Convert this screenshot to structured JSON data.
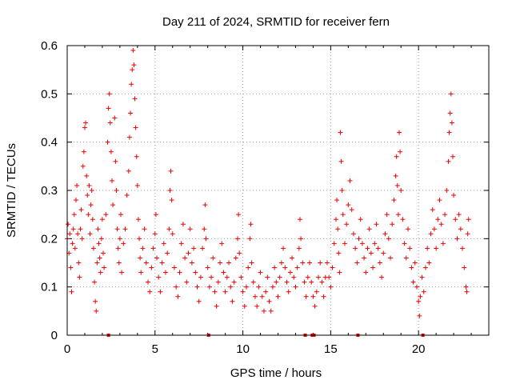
{
  "chart_data": {
    "type": "scatter",
    "title": "Day 211 of 2024, SRMTID for receiver fern",
    "xlabel": "GPS time / hours",
    "ylabel": "SRMTID / TECUs",
    "xlim": [
      0,
      24
    ],
    "ylim": [
      0,
      0.6
    ],
    "grid": true,
    "marker": "+",
    "series_color": "#ee0000",
    "x_ticks": [
      0,
      5,
      10,
      15,
      20
    ],
    "x_tick_labels": [
      "0",
      "5",
      "10",
      "15",
      "20"
    ],
    "y_ticks": [
      0,
      0.1,
      0.2,
      0.3,
      0.4,
      0.5,
      0.6
    ],
    "y_tick_labels": [
      "0",
      "0.1",
      "0.2",
      "0.3",
      "0.4",
      "0.5",
      "0.6"
    ],
    "series": [
      {
        "name": "SRMTID",
        "points": [
          [
            0.0,
            0.2
          ],
          [
            0.05,
            0.23
          ],
          [
            0.1,
            0.17
          ],
          [
            0.15,
            0.21
          ],
          [
            0.2,
            0.14
          ],
          [
            0.25,
            0.09
          ],
          [
            0.3,
            0.19
          ],
          [
            0.35,
            0.22
          ],
          [
            0.4,
            0.25
          ],
          [
            0.45,
            0.18
          ],
          [
            0.5,
            0.28
          ],
          [
            0.55,
            0.31
          ],
          [
            0.6,
            0.21
          ],
          [
            0.65,
            0.15
          ],
          [
            0.7,
            0.12
          ],
          [
            0.75,
            0.22
          ],
          [
            0.8,
            0.26
          ],
          [
            0.85,
            0.2
          ],
          [
            0.9,
            0.35
          ],
          [
            0.95,
            0.38
          ],
          [
            1.0,
            0.43
          ],
          [
            1.05,
            0.44
          ],
          [
            1.1,
            0.33
          ],
          [
            1.15,
            0.29
          ],
          [
            1.2,
            0.25
          ],
          [
            1.25,
            0.31
          ],
          [
            1.3,
            0.21
          ],
          [
            1.35,
            0.27
          ],
          [
            1.4,
            0.3
          ],
          [
            1.45,
            0.24
          ],
          [
            1.5,
            0.18
          ],
          [
            1.55,
            0.11
          ],
          [
            1.6,
            0.07
          ],
          [
            1.65,
            0.05
          ],
          [
            1.7,
            0.15
          ],
          [
            1.75,
            0.22
          ],
          [
            1.8,
            0.19
          ],
          [
            1.85,
            0.16
          ],
          [
            1.9,
            0.13
          ],
          [
            1.95,
            0.2
          ],
          [
            2.0,
            0.24
          ],
          [
            2.05,
            0.17
          ],
          [
            2.1,
            0.14
          ],
          [
            2.2,
            0.25
          ],
          [
            2.3,
            0.4
          ],
          [
            2.35,
            0.47
          ],
          [
            2.4,
            0.5
          ],
          [
            2.45,
            0.44
          ],
          [
            2.5,
            0.38
          ],
          [
            2.55,
            0.32
          ],
          [
            2.6,
            0.27
          ],
          [
            2.7,
            0.45
          ],
          [
            2.75,
            0.36
          ],
          [
            2.8,
            0.3
          ],
          [
            2.85,
            0.22
          ],
          [
            2.9,
            0.18
          ],
          [
            2.95,
            0.15
          ],
          [
            3.0,
            0.2
          ],
          [
            3.05,
            0.25
          ],
          [
            3.1,
            0.13
          ],
          [
            3.2,
            0.19
          ],
          [
            3.3,
            0.22
          ],
          [
            3.4,
            0.29
          ],
          [
            3.5,
            0.34
          ],
          [
            3.55,
            0.41
          ],
          [
            3.6,
            0.46
          ],
          [
            3.65,
            0.52
          ],
          [
            3.7,
            0.55
          ],
          [
            3.75,
            0.59
          ],
          [
            3.8,
            0.56
          ],
          [
            3.85,
            0.49
          ],
          [
            3.9,
            0.43
          ],
          [
            3.95,
            0.37
          ],
          [
            4.0,
            0.31
          ],
          [
            4.05,
            0.24
          ],
          [
            4.1,
            0.2
          ],
          [
            4.15,
            0.16
          ],
          [
            4.2,
            0.13
          ],
          [
            4.3,
            0.18
          ],
          [
            4.4,
            0.22
          ],
          [
            4.5,
            0.15
          ],
          [
            4.6,
            0.11
          ],
          [
            4.7,
            0.09
          ],
          [
            4.8,
            0.14
          ],
          [
            4.9,
            0.18
          ],
          [
            5.0,
            0.21
          ],
          [
            5.05,
            0.25
          ],
          [
            5.1,
            0.16
          ],
          [
            5.2,
            0.12
          ],
          [
            5.3,
            0.09
          ],
          [
            5.4,
            0.15
          ],
          [
            5.5,
            0.19
          ],
          [
            5.6,
            0.13
          ],
          [
            5.7,
            0.17
          ],
          [
            5.8,
            0.22
          ],
          [
            5.85,
            0.3
          ],
          [
            5.9,
            0.34
          ],
          [
            5.95,
            0.28
          ],
          [
            6.0,
            0.21
          ],
          [
            6.1,
            0.14
          ],
          [
            6.2,
            0.1
          ],
          [
            6.3,
            0.08
          ],
          [
            6.4,
            0.13
          ],
          [
            6.5,
            0.19
          ],
          [
            6.6,
            0.23
          ],
          [
            6.7,
            0.16
          ],
          [
            6.8,
            0.11
          ],
          [
            6.9,
            0.17
          ],
          [
            7.0,
            0.22
          ],
          [
            7.1,
            0.15
          ],
          [
            7.2,
            0.18
          ],
          [
            7.3,
            0.13
          ],
          [
            7.4,
            0.1
          ],
          [
            7.5,
            0.07
          ],
          [
            7.6,
            0.12
          ],
          [
            7.7,
            0.18
          ],
          [
            7.8,
            0.22
          ],
          [
            7.85,
            0.27
          ],
          [
            7.9,
            0.2
          ],
          [
            8.0,
            0.14
          ],
          [
            8.1,
            0.1
          ],
          [
            8.2,
            0.12
          ],
          [
            8.3,
            0.16
          ],
          [
            8.4,
            0.09
          ],
          [
            8.5,
            0.06
          ],
          [
            8.6,
            0.11
          ],
          [
            8.7,
            0.15
          ],
          [
            8.8,
            0.19
          ],
          [
            8.9,
            0.13
          ],
          [
            9.0,
            0.09
          ],
          [
            9.1,
            0.12
          ],
          [
            9.2,
            0.15
          ],
          [
            9.3,
            0.1
          ],
          [
            9.4,
            0.07
          ],
          [
            9.5,
            0.11
          ],
          [
            9.6,
            0.16
          ],
          [
            9.7,
            0.2
          ],
          [
            9.75,
            0.25
          ],
          [
            9.8,
            0.17
          ],
          [
            9.9,
            0.12
          ],
          [
            10.0,
            0.09
          ],
          [
            10.1,
            0.06
          ],
          [
            10.2,
            0.1
          ],
          [
            10.3,
            0.14
          ],
          [
            10.4,
            0.2
          ],
          [
            10.45,
            0.23
          ],
          [
            10.5,
            0.15
          ],
          [
            10.6,
            0.11
          ],
          [
            10.7,
            0.08
          ],
          [
            10.8,
            0.06
          ],
          [
            10.9,
            0.1
          ],
          [
            11.0,
            0.13
          ],
          [
            11.1,
            0.08
          ],
          [
            11.2,
            0.05
          ],
          [
            11.3,
            0.09
          ],
          [
            11.4,
            0.12
          ],
          [
            11.5,
            0.07
          ],
          [
            11.6,
            0.05
          ],
          [
            11.7,
            0.1
          ],
          [
            11.8,
            0.14
          ],
          [
            11.9,
            0.11
          ],
          [
            12.0,
            0.08
          ],
          [
            12.1,
            0.12
          ],
          [
            12.2,
            0.15
          ],
          [
            12.3,
            0.18
          ],
          [
            12.4,
            0.14
          ],
          [
            12.5,
            0.11
          ],
          [
            12.6,
            0.09
          ],
          [
            12.7,
            0.13
          ],
          [
            12.8,
            0.16
          ],
          [
            12.9,
            0.12
          ],
          [
            13.0,
            0.1
          ],
          [
            13.1,
            0.14
          ],
          [
            13.2,
            0.18
          ],
          [
            13.25,
            0.24
          ],
          [
            13.3,
            0.2
          ],
          [
            13.4,
            0.15
          ],
          [
            13.5,
            0.11
          ],
          [
            13.6,
            0.08
          ],
          [
            13.7,
            0.12
          ],
          [
            13.8,
            0.15
          ],
          [
            13.9,
            0.11
          ],
          [
            14.0,
            0.08
          ],
          [
            14.1,
            0.06
          ],
          [
            14.2,
            0.09
          ],
          [
            14.3,
            0.12
          ],
          [
            14.4,
            0.15
          ],
          [
            14.5,
            0.11
          ],
          [
            14.6,
            0.08
          ],
          [
            14.7,
            0.12
          ],
          [
            14.8,
            0.15
          ],
          [
            14.9,
            0.12
          ],
          [
            15.0,
            0.1
          ],
          [
            15.1,
            0.14
          ],
          [
            15.2,
            0.19
          ],
          [
            15.3,
            0.24
          ],
          [
            15.35,
            0.28
          ],
          [
            15.4,
            0.22
          ],
          [
            15.45,
            0.17
          ],
          [
            15.5,
            0.13
          ],
          [
            15.55,
            0.42
          ],
          [
            15.6,
            0.36
          ],
          [
            15.65,
            0.3
          ],
          [
            15.7,
            0.25
          ],
          [
            15.8,
            0.19
          ],
          [
            15.9,
            0.23
          ],
          [
            16.0,
            0.27
          ],
          [
            16.1,
            0.32
          ],
          [
            16.2,
            0.26
          ],
          [
            16.3,
            0.21
          ],
          [
            16.4,
            0.18
          ],
          [
            16.5,
            0.15
          ],
          [
            16.6,
            0.2
          ],
          [
            16.7,
            0.24
          ],
          [
            16.8,
            0.19
          ],
          [
            16.9,
            0.16
          ],
          [
            17.0,
            0.13
          ],
          [
            17.1,
            0.18
          ],
          [
            17.2,
            0.22
          ],
          [
            17.3,
            0.17
          ],
          [
            17.4,
            0.14
          ],
          [
            17.5,
            0.19
          ],
          [
            17.6,
            0.23
          ],
          [
            17.7,
            0.18
          ],
          [
            17.8,
            0.15
          ],
          [
            17.9,
            0.12
          ],
          [
            18.0,
            0.17
          ],
          [
            18.1,
            0.21
          ],
          [
            18.2,
            0.25
          ],
          [
            18.3,
            0.2
          ],
          [
            18.4,
            0.16
          ],
          [
            18.5,
            0.23
          ],
          [
            18.6,
            0.28
          ],
          [
            18.7,
            0.33
          ],
          [
            18.75,
            0.37
          ],
          [
            18.8,
            0.31
          ],
          [
            18.85,
            0.25
          ],
          [
            18.9,
            0.42
          ],
          [
            18.95,
            0.38
          ],
          [
            19.0,
            0.3
          ],
          [
            19.1,
            0.24
          ],
          [
            19.2,
            0.19
          ],
          [
            19.3,
            0.16
          ],
          [
            19.4,
            0.22
          ],
          [
            19.5,
            0.18
          ],
          [
            19.6,
            0.14
          ],
          [
            19.7,
            0.11
          ],
          [
            19.8,
            0.15
          ],
          [
            19.9,
            0.1
          ],
          [
            20.0,
            0.07
          ],
          [
            20.05,
            0.04
          ],
          [
            20.1,
            0.08
          ],
          [
            20.2,
            0.12
          ],
          [
            20.3,
            0.09
          ],
          [
            20.4,
            0.14
          ],
          [
            20.5,
            0.18
          ],
          [
            20.6,
            0.15
          ],
          [
            20.7,
            0.21
          ],
          [
            20.8,
            0.26
          ],
          [
            20.9,
            0.22
          ],
          [
            21.0,
            0.18
          ],
          [
            21.1,
            0.24
          ],
          [
            21.2,
            0.28
          ],
          [
            21.3,
            0.23
          ],
          [
            21.4,
            0.19
          ],
          [
            21.5,
            0.25
          ],
          [
            21.6,
            0.3
          ],
          [
            21.7,
            0.36
          ],
          [
            21.75,
            0.42
          ],
          [
            21.8,
            0.46
          ],
          [
            21.85,
            0.5
          ],
          [
            21.9,
            0.44
          ],
          [
            21.95,
            0.37
          ],
          [
            22.0,
            0.29
          ],
          [
            22.1,
            0.24
          ],
          [
            22.2,
            0.2
          ],
          [
            22.3,
            0.25
          ],
          [
            22.4,
            0.22
          ],
          [
            22.5,
            0.18
          ],
          [
            22.6,
            0.14
          ],
          [
            22.7,
            0.1
          ],
          [
            22.75,
            0.09
          ],
          [
            22.8,
            0.21
          ],
          [
            22.85,
            0.24
          ]
        ]
      }
    ],
    "zero_markers_x": [
      2.35,
      8.05,
      13.55,
      13.95,
      14.05,
      16.55,
      20.25
    ]
  }
}
